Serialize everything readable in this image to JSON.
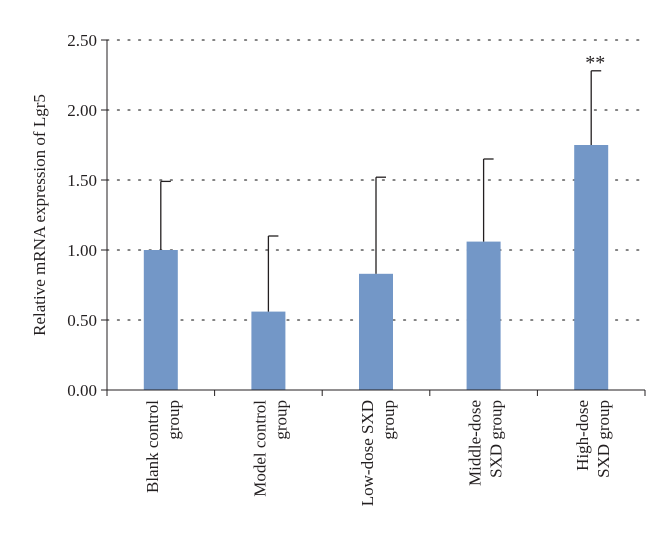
{
  "chart_data": {
    "type": "bar",
    "title": "",
    "xlabel": "",
    "ylabel": "Relative mRNA expression of Lgr5",
    "ylim": [
      0,
      2.5
    ],
    "yticks": [
      "0.00",
      "0.50",
      "1.00",
      "1.50",
      "2.00",
      "2.50"
    ],
    "grid": true,
    "legend": "none",
    "categories": [
      [
        "Blank control",
        "group"
      ],
      [
        "Model control",
        "group"
      ],
      [
        "Low-dose SXD",
        "group"
      ],
      [
        "Middle-dose",
        "SXD group"
      ],
      [
        "High-dose",
        "SXD group"
      ]
    ],
    "series": [
      {
        "values": [
          1.0,
          0.56,
          0.83,
          1.06,
          1.75
        ],
        "error_upper": [
          0.49,
          0.54,
          0.69,
          0.59,
          0.53
        ],
        "color": "#7397c7"
      }
    ],
    "annotations": [
      {
        "category_index": 4,
        "text": "**"
      }
    ]
  }
}
